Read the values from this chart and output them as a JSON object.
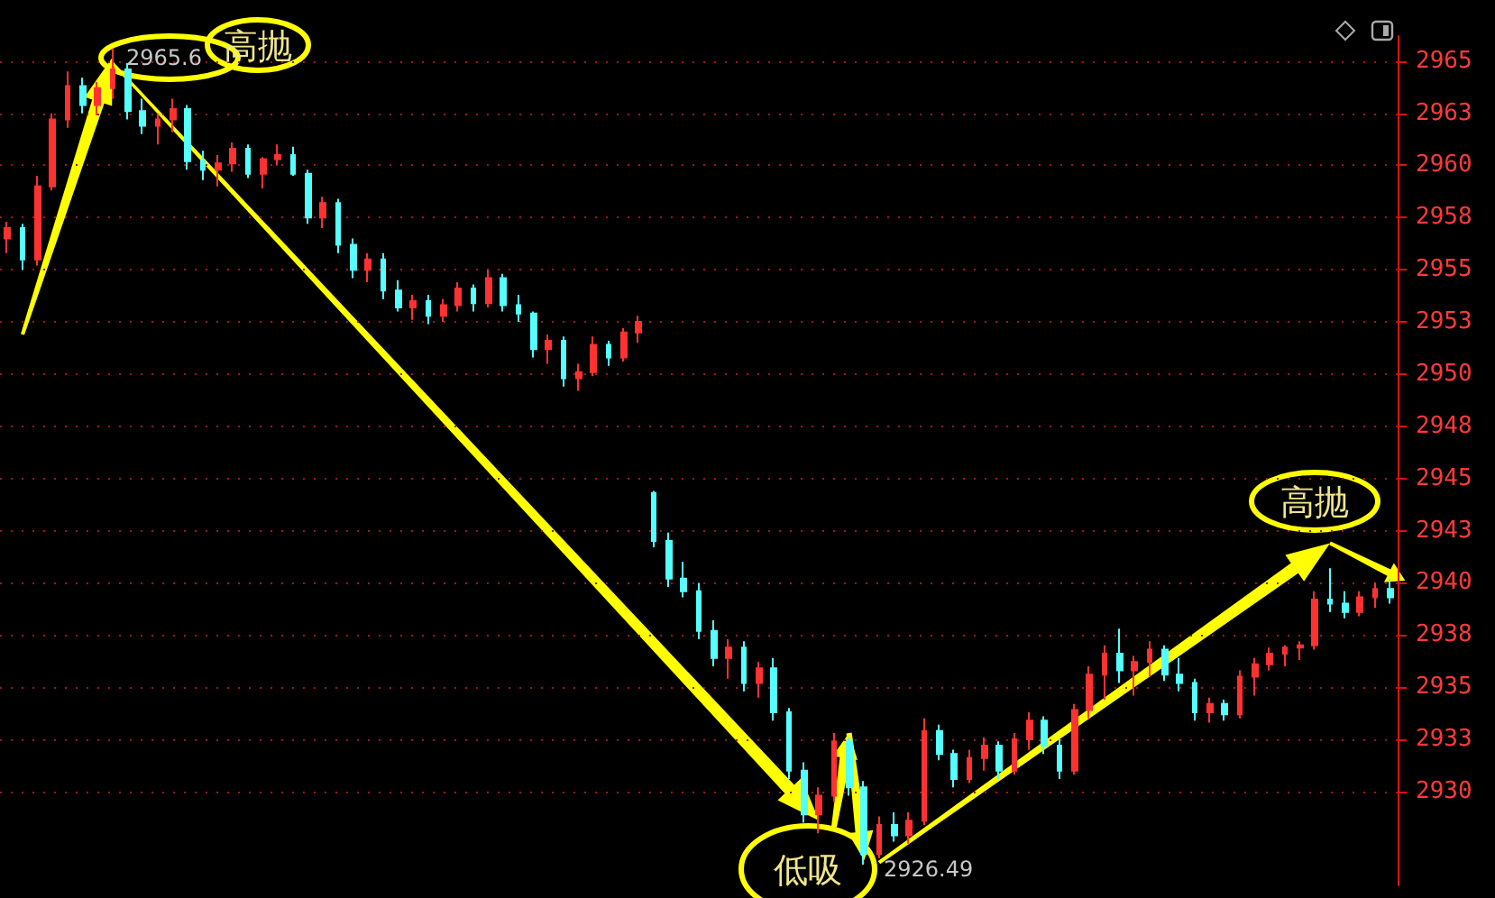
{
  "chart_data": {
    "type": "candlestick",
    "categories": [
      null,
      null,
      null,
      null,
      null,
      null,
      null,
      null,
      null,
      null,
      null,
      null,
      null,
      null,
      null,
      null,
      null,
      null,
      null,
      null,
      null,
      null,
      null,
      null,
      null,
      null,
      null,
      null,
      null,
      null,
      null,
      null,
      null,
      null,
      null,
      null,
      null,
      null,
      null,
      null,
      null,
      null,
      null,
      null,
      null,
      null,
      null,
      null,
      null,
      null,
      null,
      null,
      null,
      null,
      null,
      null,
      null,
      null,
      null,
      null,
      null,
      null,
      null,
      null,
      null,
      null,
      null,
      null,
      null,
      null,
      null,
      null,
      null,
      null,
      null,
      null,
      null,
      null,
      null,
      null,
      null,
      null,
      null,
      null,
      null,
      null,
      null,
      null,
      null,
      null,
      null,
      null,
      null
    ],
    "ohlc": [
      [
        2956.5,
        2957.3,
        2955.8,
        2957.0
      ],
      [
        2957.0,
        2957.2,
        2955.0,
        2955.5
      ],
      [
        2955.5,
        2959.5,
        2955.2,
        2959.0
      ],
      [
        2959.0,
        2962.5,
        2958.8,
        2962.2
      ],
      [
        2962.2,
        2964.5,
        2961.8,
        2963.8
      ],
      [
        2963.8,
        2964.2,
        2962.5,
        2962.9
      ],
      [
        2962.9,
        2964.0,
        2962.4,
        2963.7
      ],
      [
        2963.7,
        2965.6,
        2963.2,
        2964.6
      ],
      [
        2964.6,
        2964.9,
        2962.2,
        2962.6
      ],
      [
        2962.6,
        2963.2,
        2961.5,
        2961.9
      ],
      [
        2961.9,
        2962.5,
        2961.0,
        2962.2
      ],
      [
        2962.2,
        2963.2,
        2961.6,
        2962.7
      ],
      [
        2962.7,
        2962.9,
        2959.8,
        2960.2
      ],
      [
        2960.2,
        2960.7,
        2959.3,
        2959.8
      ],
      [
        2959.8,
        2960.5,
        2959.0,
        2960.1
      ],
      [
        2960.1,
        2961.1,
        2959.7,
        2960.8
      ],
      [
        2960.8,
        2961.0,
        2959.4,
        2959.6
      ],
      [
        2959.6,
        2960.4,
        2958.9,
        2960.3
      ],
      [
        2960.3,
        2961.0,
        2960.0,
        2960.5
      ],
      [
        2960.5,
        2960.9,
        2959.5,
        2959.6
      ],
      [
        2959.6,
        2959.8,
        2957.2,
        2957.5
      ],
      [
        2957.5,
        2958.5,
        2957.0,
        2958.2
      ],
      [
        2958.2,
        2958.4,
        2955.8,
        2956.2
      ],
      [
        2956.2,
        2956.5,
        2954.6,
        2955.0
      ],
      [
        2955.0,
        2955.8,
        2954.4,
        2955.5
      ],
      [
        2955.5,
        2955.8,
        2953.6,
        2954.0
      ],
      [
        2954.0,
        2954.5,
        2953.0,
        2953.2
      ],
      [
        2953.2,
        2953.8,
        2952.6,
        2953.5
      ],
      [
        2953.5,
        2953.8,
        2952.4,
        2952.8
      ],
      [
        2952.8,
        2953.6,
        2952.5,
        2953.3
      ],
      [
        2953.3,
        2954.4,
        2953.0,
        2954.1
      ],
      [
        2954.1,
        2954.3,
        2953.0,
        2953.4
      ],
      [
        2953.4,
        2955.0,
        2953.2,
        2954.6
      ],
      [
        2954.6,
        2954.8,
        2953.0,
        2953.3
      ],
      [
        2953.3,
        2953.8,
        2952.5,
        2952.9
      ],
      [
        2952.9,
        2953.0,
        2950.8,
        2951.2
      ],
      [
        2951.2,
        2951.9,
        2950.5,
        2951.6
      ],
      [
        2951.6,
        2951.8,
        2949.4,
        2949.8
      ],
      [
        2949.8,
        2950.5,
        2949.2,
        2950.1
      ],
      [
        2950.1,
        2951.8,
        2949.9,
        2951.4
      ],
      [
        2951.4,
        2951.6,
        2950.4,
        2950.8
      ],
      [
        2950.8,
        2952.2,
        2950.6,
        2952.0
      ],
      [
        2952.0,
        2952.8,
        2951.5,
        2952.5
      ],
      [
        2944.3,
        2944.4,
        2941.7,
        2942.0
      ],
      [
        2942.0,
        2942.4,
        2939.8,
        2940.2
      ],
      [
        2940.2,
        2941.0,
        2939.3,
        2939.6
      ],
      [
        2939.6,
        2940.0,
        2937.3,
        2937.7
      ],
      [
        2937.7,
        2938.2,
        2936.0,
        2936.4
      ],
      [
        2936.4,
        2937.3,
        2935.4,
        2936.9
      ],
      [
        2936.9,
        2937.2,
        2934.8,
        2935.2
      ],
      [
        2935.2,
        2936.2,
        2934.5,
        2935.9
      ],
      [
        2935.9,
        2936.4,
        2933.4,
        2933.8
      ],
      [
        2933.8,
        2934.0,
        2930.6,
        2931.0
      ],
      [
        2931.0,
        2931.4,
        2928.5,
        2928.9
      ],
      [
        2928.9,
        2930.2,
        2928.0,
        2929.8
      ],
      [
        2929.8,
        2932.8,
        2929.5,
        2932.4
      ],
      [
        2932.4,
        2932.6,
        2929.8,
        2930.2
      ],
      [
        2930.2,
        2930.5,
        2926.49,
        2927.0
      ],
      [
        2927.0,
        2928.8,
        2926.8,
        2928.4
      ],
      [
        2928.4,
        2929.0,
        2927.6,
        2927.9
      ],
      [
        2927.9,
        2929.0,
        2927.5,
        2928.6
      ],
      [
        2928.6,
        2933.5,
        2928.4,
        2932.9
      ],
      [
        2932.9,
        2933.2,
        2931.5,
        2931.8
      ],
      [
        2931.8,
        2932.0,
        2930.2,
        2930.6
      ],
      [
        2930.6,
        2932.0,
        2930.4,
        2931.6
      ],
      [
        2931.6,
        2932.6,
        2931.0,
        2932.2
      ],
      [
        2932.2,
        2932.4,
        2930.6,
        2931.0
      ],
      [
        2931.0,
        2932.8,
        2930.8,
        2932.5
      ],
      [
        2932.5,
        2933.8,
        2932.0,
        2933.4
      ],
      [
        2933.4,
        2933.6,
        2931.8,
        2932.2
      ],
      [
        2932.2,
        2932.5,
        2930.6,
        2931.0
      ],
      [
        2931.0,
        2934.2,
        2930.8,
        2933.9
      ],
      [
        2933.9,
        2936.0,
        2933.5,
        2935.6
      ],
      [
        2935.6,
        2937.0,
        2934.4,
        2936.6
      ],
      [
        2936.6,
        2937.8,
        2935.2,
        2935.8
      ],
      [
        2935.8,
        2936.5,
        2934.6,
        2936.2
      ],
      [
        2936.2,
        2937.2,
        2935.5,
        2936.8
      ],
      [
        2936.8,
        2937.0,
        2935.3,
        2935.6
      ],
      [
        2935.6,
        2936.4,
        2934.8,
        2935.2
      ],
      [
        2935.2,
        2935.4,
        2933.4,
        2933.8
      ],
      [
        2933.8,
        2934.5,
        2933.3,
        2934.2
      ],
      [
        2934.2,
        2934.4,
        2933.4,
        2933.7
      ],
      [
        2933.7,
        2935.8,
        2933.5,
        2935.5
      ],
      [
        2935.5,
        2936.4,
        2934.6,
        2936.1
      ],
      [
        2936.1,
        2936.9,
        2935.8,
        2936.6
      ],
      [
        2936.6,
        2937.0,
        2936.0,
        2936.9
      ],
      [
        2936.9,
        2937.2,
        2936.3,
        2937.0
      ],
      [
        2937.0,
        2939.6,
        2936.8,
        2939.2
      ],
      [
        2939.2,
        2940.7,
        2938.6,
        2939.0
      ],
      [
        2939.0,
        2939.6,
        2938.3,
        2938.6
      ],
      [
        2938.6,
        2939.6,
        2938.4,
        2939.3
      ],
      [
        2939.3,
        2940.0,
        2938.8,
        2939.7
      ],
      [
        2939.7,
        2940.2,
        2939.0,
        2939.3
      ]
    ],
    "colors": [
      "#ff3232",
      "#54ffff",
      "#ff3232",
      "#ff3232",
      "#ff3232",
      "#54ffff",
      "#ff3232",
      "#ff3232",
      "#54ffff",
      "#54ffff",
      "#ff3232",
      "#ff3232",
      "#54ffff",
      "#54ffff",
      "#ff3232",
      "#ff3232",
      "#54ffff",
      "#ff3232",
      "#ff3232",
      "#54ffff",
      "#54ffff",
      "#ff3232",
      "#54ffff",
      "#54ffff",
      "#ff3232",
      "#54ffff",
      "#54ffff",
      "#ff3232",
      "#54ffff",
      "#ff3232",
      "#ff3232",
      "#54ffff",
      "#ff3232",
      "#54ffff",
      "#54ffff",
      "#54ffff",
      "#ff3232",
      "#54ffff",
      "#ff3232",
      "#ff3232",
      "#54ffff",
      "#ff3232",
      "#ff3232",
      "#54ffff",
      "#54ffff",
      "#54ffff",
      "#54ffff",
      "#54ffff",
      "#ff3232",
      "#54ffff",
      "#ff3232",
      "#54ffff",
      "#54ffff",
      "#54ffff",
      "#ff3232",
      "#ff3232",
      "#54ffff",
      "#54ffff",
      "#ff3232",
      "#54ffff",
      "#ff3232",
      "#ff3232",
      "#54ffff",
      "#54ffff",
      "#ff3232",
      "#ff3232",
      "#54ffff",
      "#ff3232",
      "#ff3232",
      "#54ffff",
      "#54ffff",
      "#ff3232",
      "#ff3232",
      "#ff3232",
      "#54ffff",
      "#ff3232",
      "#ff3232",
      "#54ffff",
      "#54ffff",
      "#54ffff",
      "#ff3232",
      "#54ffff",
      "#ff3232",
      "#ff3232",
      "#ff3232",
      "#ff3232",
      "#ff3232",
      "#ff3232",
      "#54ffff",
      "#54ffff",
      "#ff3232",
      "#ff3232",
      "#54ffff"
    ],
    "ylim": [
      2925.5,
      2966.2
    ],
    "yticks": [
      2930,
      {
        "value": 2932.5,
        "label": "2933"
      },
      2935,
      {
        "value": 2937.5,
        "label": "2938"
      },
      2940,
      {
        "value": 2942.5,
        "label": "2943"
      },
      2945,
      {
        "value": 2947.5,
        "label": "2948"
      },
      2950,
      {
        "value": 2952.5,
        "label": "2953"
      },
      2955,
      {
        "value": 2957.5,
        "label": "2958"
      },
      2960,
      {
        "value": 2962.5,
        "label": "2963"
      },
      2965
    ],
    "grid": "y",
    "tick_labels": "y",
    "annotations": [
      "2965.6",
      "高抛",
      "2926.49",
      "低吸",
      "高抛"
    ]
  }
}
